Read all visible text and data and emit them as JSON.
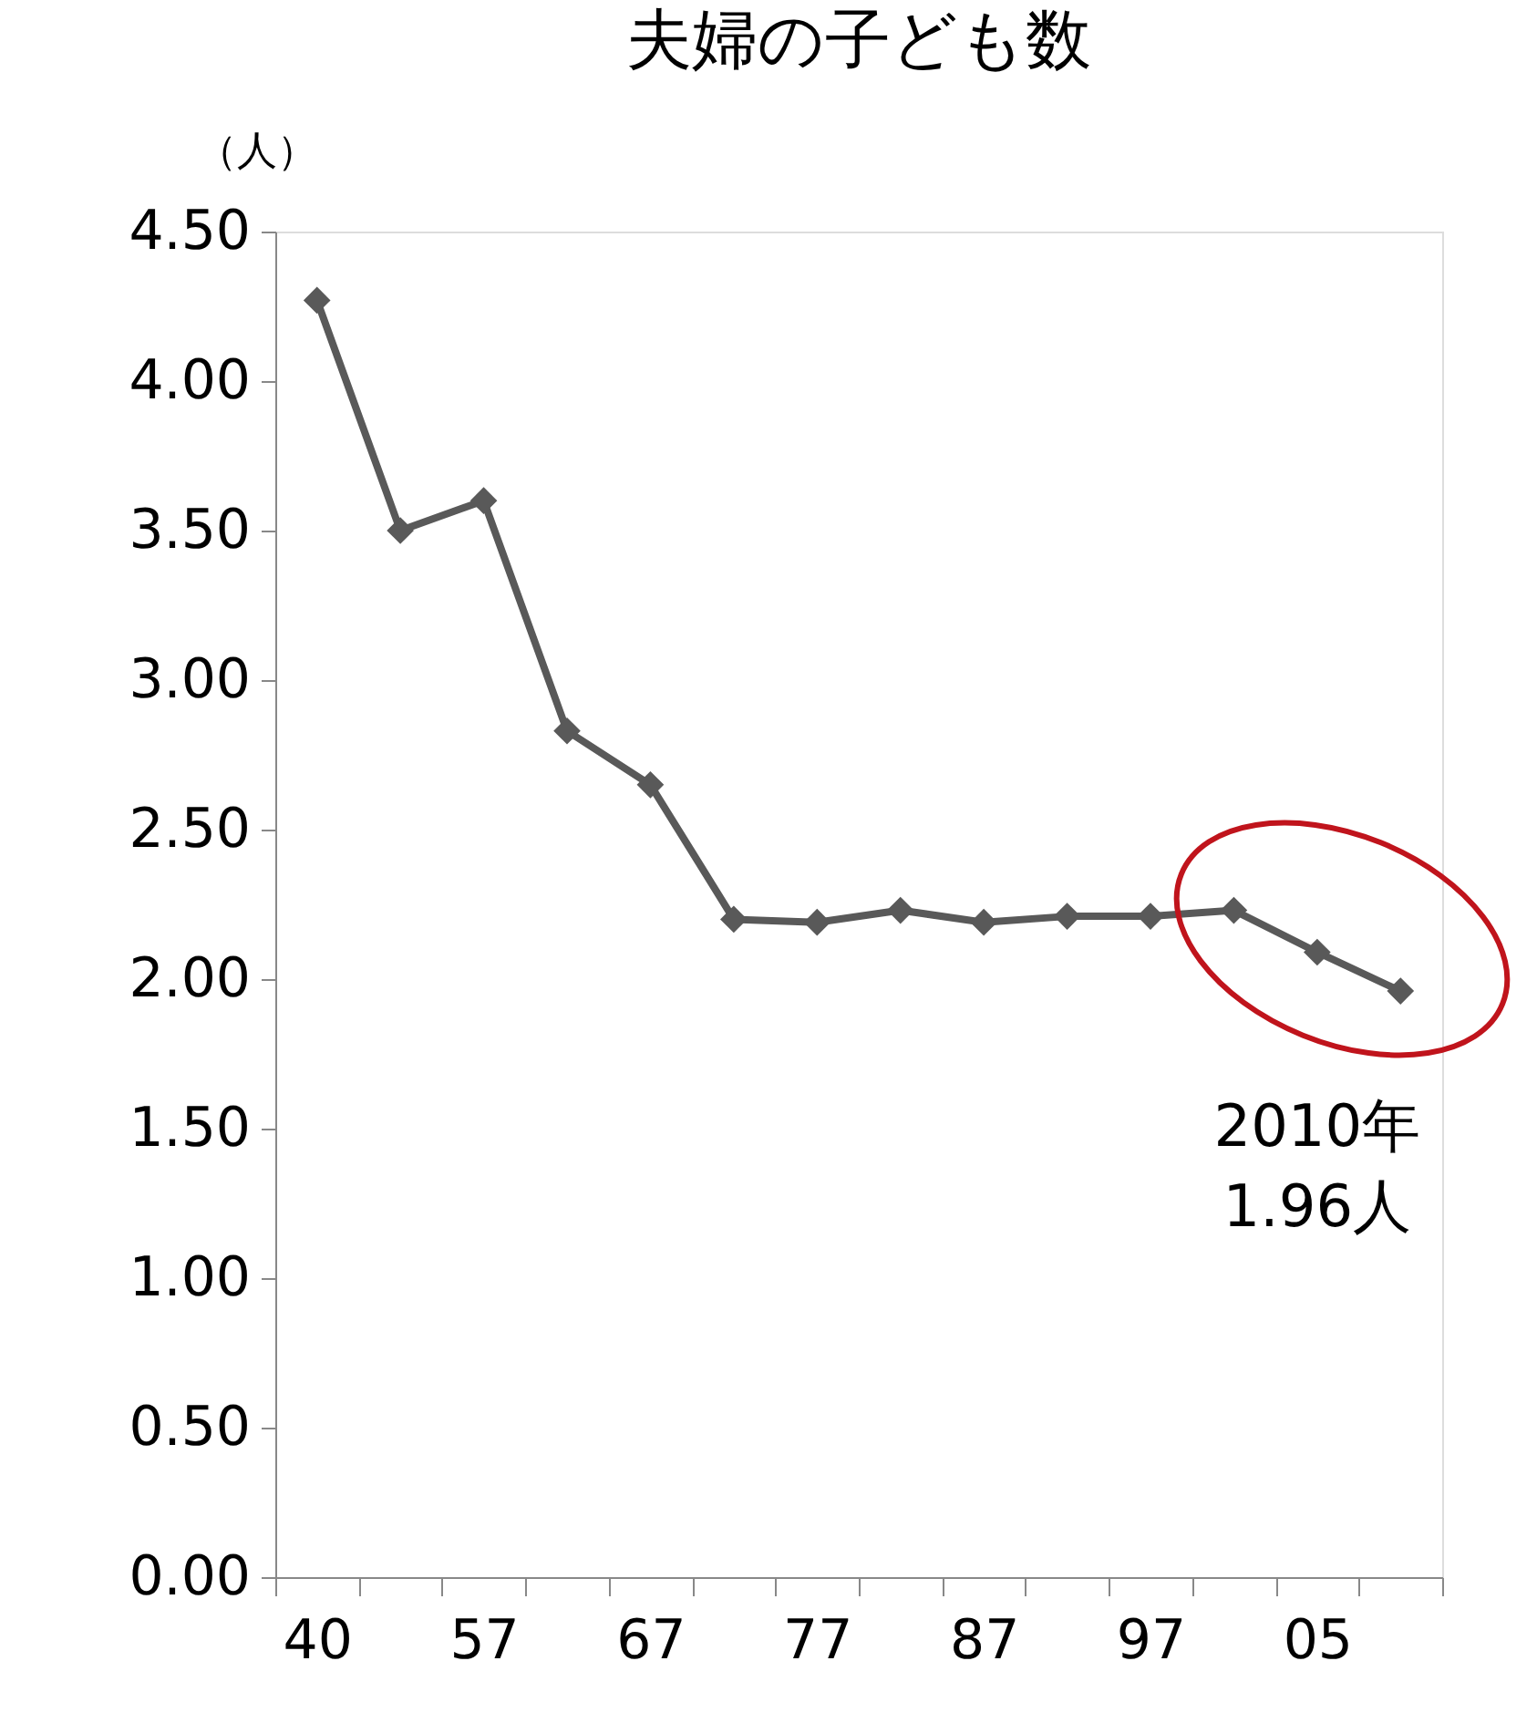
{
  "chart_data": {
    "type": "line",
    "title": "夫婦の子ども数",
    "ylabel": "（人）",
    "categories": [
      "40",
      null,
      "57",
      null,
      "67",
      null,
      "77",
      null,
      "87",
      null,
      "97",
      null,
      "05",
      null
    ],
    "series": [
      {
        "color": "#595959",
        "values": [
          4.27,
          3.5,
          3.6,
          2.83,
          2.65,
          2.2,
          2.19,
          2.23,
          2.19,
          2.21,
          2.21,
          2.23,
          2.09,
          1.96
        ]
      }
    ],
    "ylim": [
      0,
      4.5
    ],
    "yticks": [
      {
        "value": 0,
        "label": "0.00"
      },
      {
        "value": 0.5,
        "label": "0.50"
      },
      {
        "value": 1,
        "label": "1.00"
      },
      {
        "value": 1.5,
        "label": "1.50"
      },
      {
        "value": 2,
        "label": "2.00"
      },
      {
        "value": 2.5,
        "label": "2.50"
      },
      {
        "value": 3,
        "label": "3.00"
      },
      {
        "value": 3.5,
        "label": "3.50"
      },
      {
        "value": 4,
        "label": "4.00"
      },
      {
        "value": 4.5,
        "label": "4.50"
      }
    ],
    "annotations": [
      "2010年\n1.96人"
    ],
    "marker": "diamond",
    "grid": false
  }
}
